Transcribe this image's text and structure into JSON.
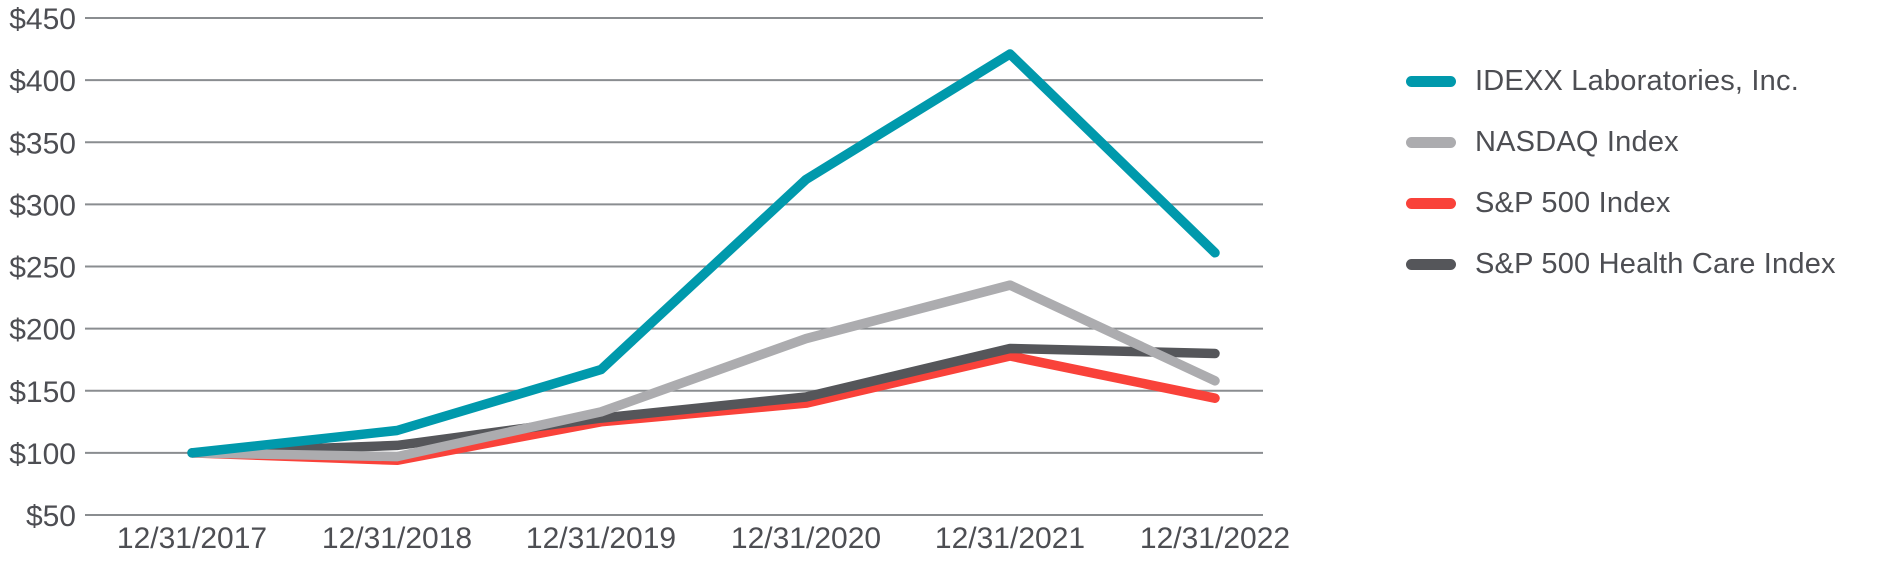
{
  "chart_data": {
    "type": "line",
    "title": "",
    "xlabel": "",
    "ylabel": "",
    "grid": "horizontal",
    "legend_position": "right",
    "x_categories": [
      "12/31/2017",
      "12/31/2018",
      "12/31/2019",
      "12/31/2020",
      "12/31/2021",
      "12/31/2022"
    ],
    "y_axis": {
      "min": 50,
      "max": 450,
      "step": 50,
      "tick_prefix": "$",
      "tick_labels": [
        "$50",
        "$100",
        "$150",
        "$200",
        "$250",
        "$300",
        "$350",
        "$400",
        "$450"
      ]
    },
    "series": [
      {
        "name": "IDEXX Laboratories, Inc.",
        "color": "#0099ac",
        "values": [
          100,
          118,
          167,
          320,
          421,
          261
        ]
      },
      {
        "name": "NASDAQ Index",
        "color": "#acacaf",
        "values": [
          100,
          97,
          133,
          192,
          235,
          158
        ]
      },
      {
        "name": "S&P 500 Index",
        "color": "#f9423a",
        "values": [
          100,
          94,
          125,
          140,
          178,
          144
        ]
      },
      {
        "name": "S&P 500 Health Care Index",
        "color": "#55565a",
        "values": [
          100,
          106,
          128,
          145,
          184,
          180
        ]
      }
    ]
  },
  "colors": {
    "background": "#ffffff",
    "gridline": "#8a8d90",
    "axis_text": "#4d4e53",
    "legend_text": "#4d4e53"
  }
}
